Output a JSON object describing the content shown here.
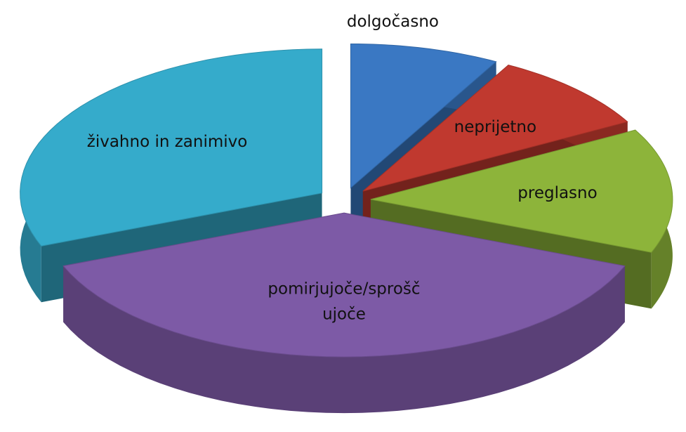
{
  "chart_data": {
    "type": "pie3d",
    "categories": [
      "dolgočasno",
      "neprijetno",
      "preglasno",
      "pomirjujoče/sproščujoče",
      "živahno in zanimivo"
    ],
    "values": [
      8,
      9,
      14,
      38,
      31
    ],
    "colors": [
      "#3a78c3",
      "#c0392f",
      "#8db43a",
      "#7d5aa6",
      "#35abcb"
    ]
  }
}
